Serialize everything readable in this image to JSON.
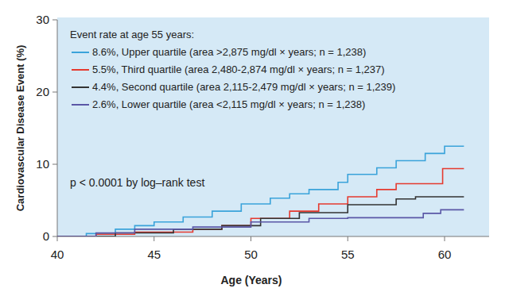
{
  "chart_data": {
    "type": "line",
    "line_style": "step",
    "legend": "upper left",
    "grid": false,
    "legend_title": "Event rate at age 55 years:",
    "annotations": [
      "p < 0.0001 by log–rank test"
    ],
    "x_label": "Age (Years)",
    "y_label": "Cardiovascular Disease Event (%)",
    "xlim": [
      40,
      62.3
    ],
    "xticks": [
      40,
      45,
      50,
      55,
      60
    ],
    "ylim": [
      0,
      30
    ],
    "yticks": [
      0,
      10,
      20,
      30
    ],
    "series": [
      {
        "name": "8.6%, Upper quartile (area >2,875 mg/dl × years; n = 1,238)",
        "color": "#3aa3da",
        "x": [
          40,
          41.5,
          43,
          44,
          45,
          46.5,
          48,
          49.5,
          51,
          52,
          53,
          54.5,
          55,
          56.5,
          57.5,
          59,
          60,
          61
        ],
        "values": [
          0,
          0.4,
          1,
          1.5,
          2,
          2.7,
          3.5,
          4.5,
          5.3,
          5.9,
          6.5,
          7.5,
          8.6,
          9.5,
          10.5,
          11.5,
          12.5,
          12.5
        ]
      },
      {
        "name": "5.5%, Third quartile (area 2,480-2,874 mg/dl × years; n = 1,237)",
        "color": "#e53a2f",
        "x": [
          40,
          42,
          44,
          47,
          48.5,
          50,
          52,
          53.5,
          55,
          56.5,
          57.5,
          59.9,
          61
        ],
        "values": [
          0,
          0.3,
          0.6,
          1,
          1.5,
          2.5,
          3.5,
          4.5,
          5.5,
          6.5,
          7.3,
          9.4,
          9.4
        ]
      },
      {
        "name": "4.4%, Second quartile (area 2,115-2,479 mg/dl × years; n = 1,239)",
        "color": "#333333",
        "x": [
          40,
          43,
          46,
          48.5,
          50.5,
          52.5,
          55,
          57.5,
          58.5,
          61
        ],
        "values": [
          0,
          0.5,
          1,
          1.5,
          2.5,
          3.3,
          4.4,
          5.2,
          5.5,
          5.5
        ]
      },
      {
        "name": "2.6%, Lower quartile (area <2,115 mg/dl × years; n = 1,238)",
        "color": "#5a57a6",
        "x": [
          40,
          42,
          44,
          47,
          50,
          53,
          55,
          58.9,
          59.8,
          61
        ],
        "values": [
          0,
          0.5,
          1,
          1.3,
          2,
          2.5,
          2.6,
          3.2,
          3.7,
          3.7
        ]
      }
    ]
  }
}
